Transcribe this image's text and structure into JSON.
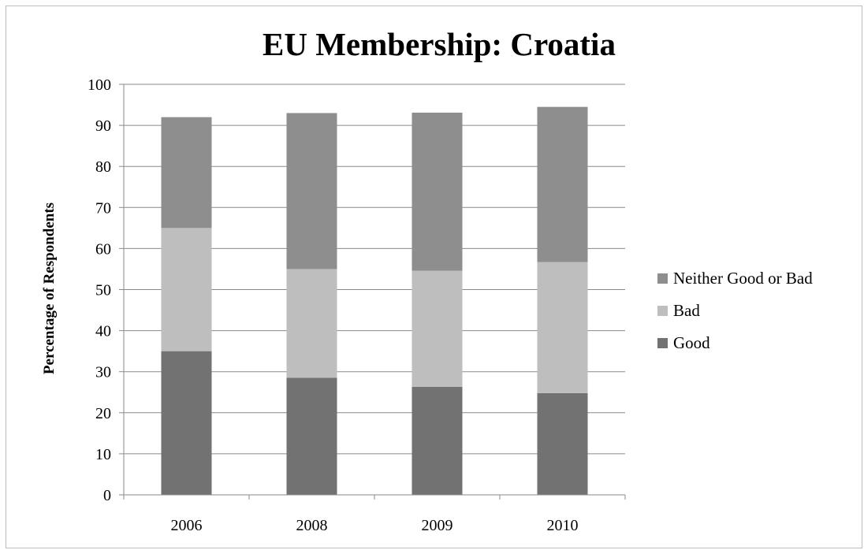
{
  "chart_data": {
    "type": "bar",
    "stacked": true,
    "title": "EU Membership: Croatia",
    "xlabel": "",
    "ylabel": "Percentage of Respondents",
    "ylim": [
      0,
      100
    ],
    "yticks": [
      "0",
      "10",
      "20",
      "30",
      "40",
      "50",
      "60",
      "70",
      "80",
      "90",
      "100"
    ],
    "grid": true,
    "legend_position": "right",
    "categories": [
      "2006",
      "2008",
      "2009",
      "2010"
    ],
    "series": [
      {
        "name": "Good",
        "values": [
          35,
          28.5,
          26.3,
          24.8
        ],
        "color": "#727272"
      },
      {
        "name": "Bad",
        "values": [
          30,
          26.5,
          28.3,
          31.9
        ],
        "color": "#bebebe"
      },
      {
        "name": "Neither Good or Bad",
        "values": [
          27,
          38,
          38.5,
          37.8
        ],
        "color": "#8e8e8e"
      }
    ],
    "legend_order": [
      "Neither Good or Bad",
      "Bad",
      "Good"
    ]
  }
}
